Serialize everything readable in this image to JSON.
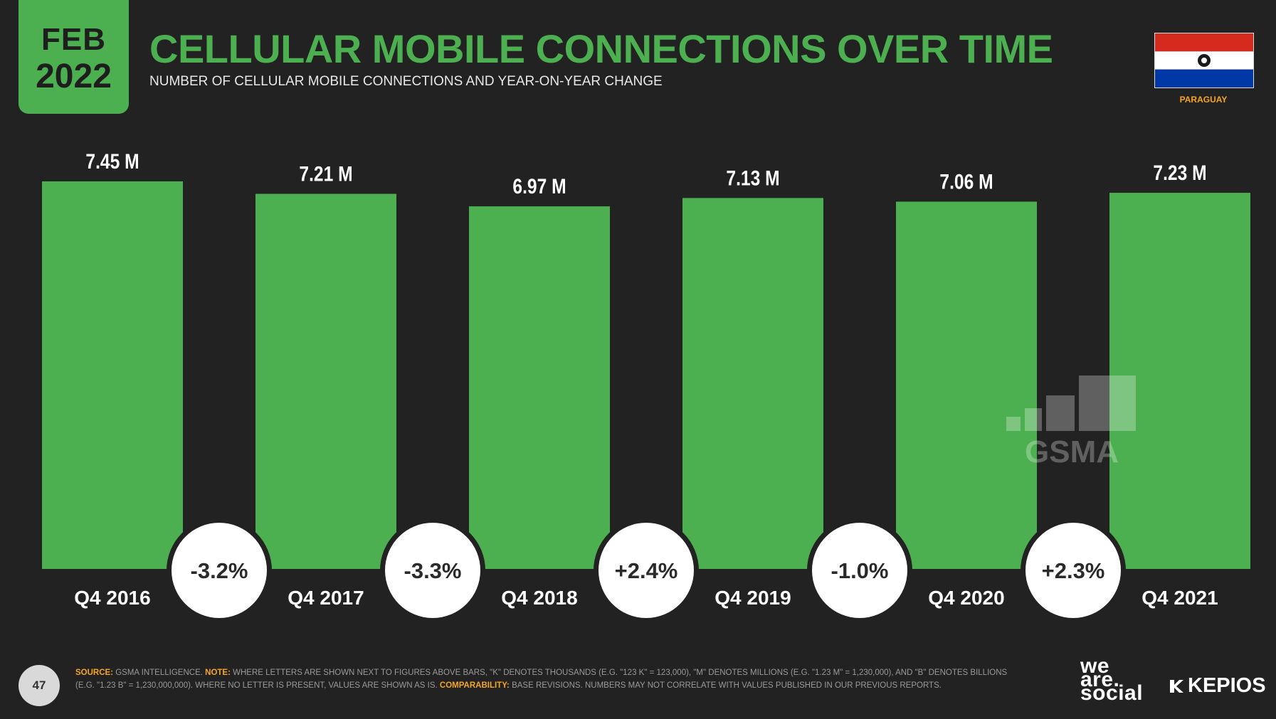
{
  "badge": {
    "month": "FEB",
    "year": "2022"
  },
  "header": {
    "title": "CELLULAR MOBILE CONNECTIONS OVER TIME",
    "subtitle": "NUMBER OF CELLULAR MOBILE CONNECTIONS AND YEAR-ON-YEAR CHANGE"
  },
  "country": {
    "name": "PARAGUAY",
    "flag_colors": [
      "#d52b1e",
      "#ffffff",
      "#0038a8"
    ]
  },
  "colors": {
    "bar": "#4caf50",
    "background": "#222222",
    "bubble": "#ffffff",
    "bubble_text": "#2a2a2a"
  },
  "chart_data": {
    "type": "bar",
    "title": "CELLULAR MOBILE CONNECTIONS OVER TIME",
    "categories": [
      "Q4 2016",
      "Q4 2017",
      "Q4 2018",
      "Q4 2019",
      "Q4 2020",
      "Q4 2021"
    ],
    "values": [
      7.45,
      7.21,
      6.97,
      7.13,
      7.06,
      7.23
    ],
    "value_labels": [
      "7.45 M",
      "7.21 M",
      "6.97 M",
      "7.13 M",
      "7.06 M",
      "7.23 M"
    ],
    "yoy_changes": [
      "-3.2%",
      "-3.3%",
      "+2.4%",
      "-1.0%",
      "+2.3%"
    ],
    "unit": "millions of connections",
    "xlabel": "",
    "ylabel": "",
    "grid": false,
    "legend": "none"
  },
  "watermark": "GSMA",
  "footer": {
    "page_number": "47",
    "source_label": "SOURCE:",
    "source_text": "GSMA INTELLIGENCE.",
    "note_label": "NOTE:",
    "note_text": "WHERE LETTERS ARE SHOWN NEXT TO FIGURES ABOVE BARS, \"K\" DENOTES THOUSANDS (E.G. \"123 K\" = 123,000), \"M\" DENOTES MILLIONS (E.G. \"1.23 M\" = 1,230,000), AND \"B\" DENOTES BILLIONS (E.G. \"1.23 B\" = 1,230,000,000). WHERE NO LETTER IS PRESENT, VALUES ARE SHOWN AS IS.",
    "comparability_label": "COMPARABILITY:",
    "comparability_text": "BASE REVISIONS. NUMBERS MAY NOT CORRELATE WITH VALUES PUBLISHED IN OUR PREVIOUS REPORTS."
  },
  "logos": {
    "was_line1": "we",
    "was_line2": "are.",
    "was_line3": "social",
    "kepios": "KEPIOS"
  }
}
